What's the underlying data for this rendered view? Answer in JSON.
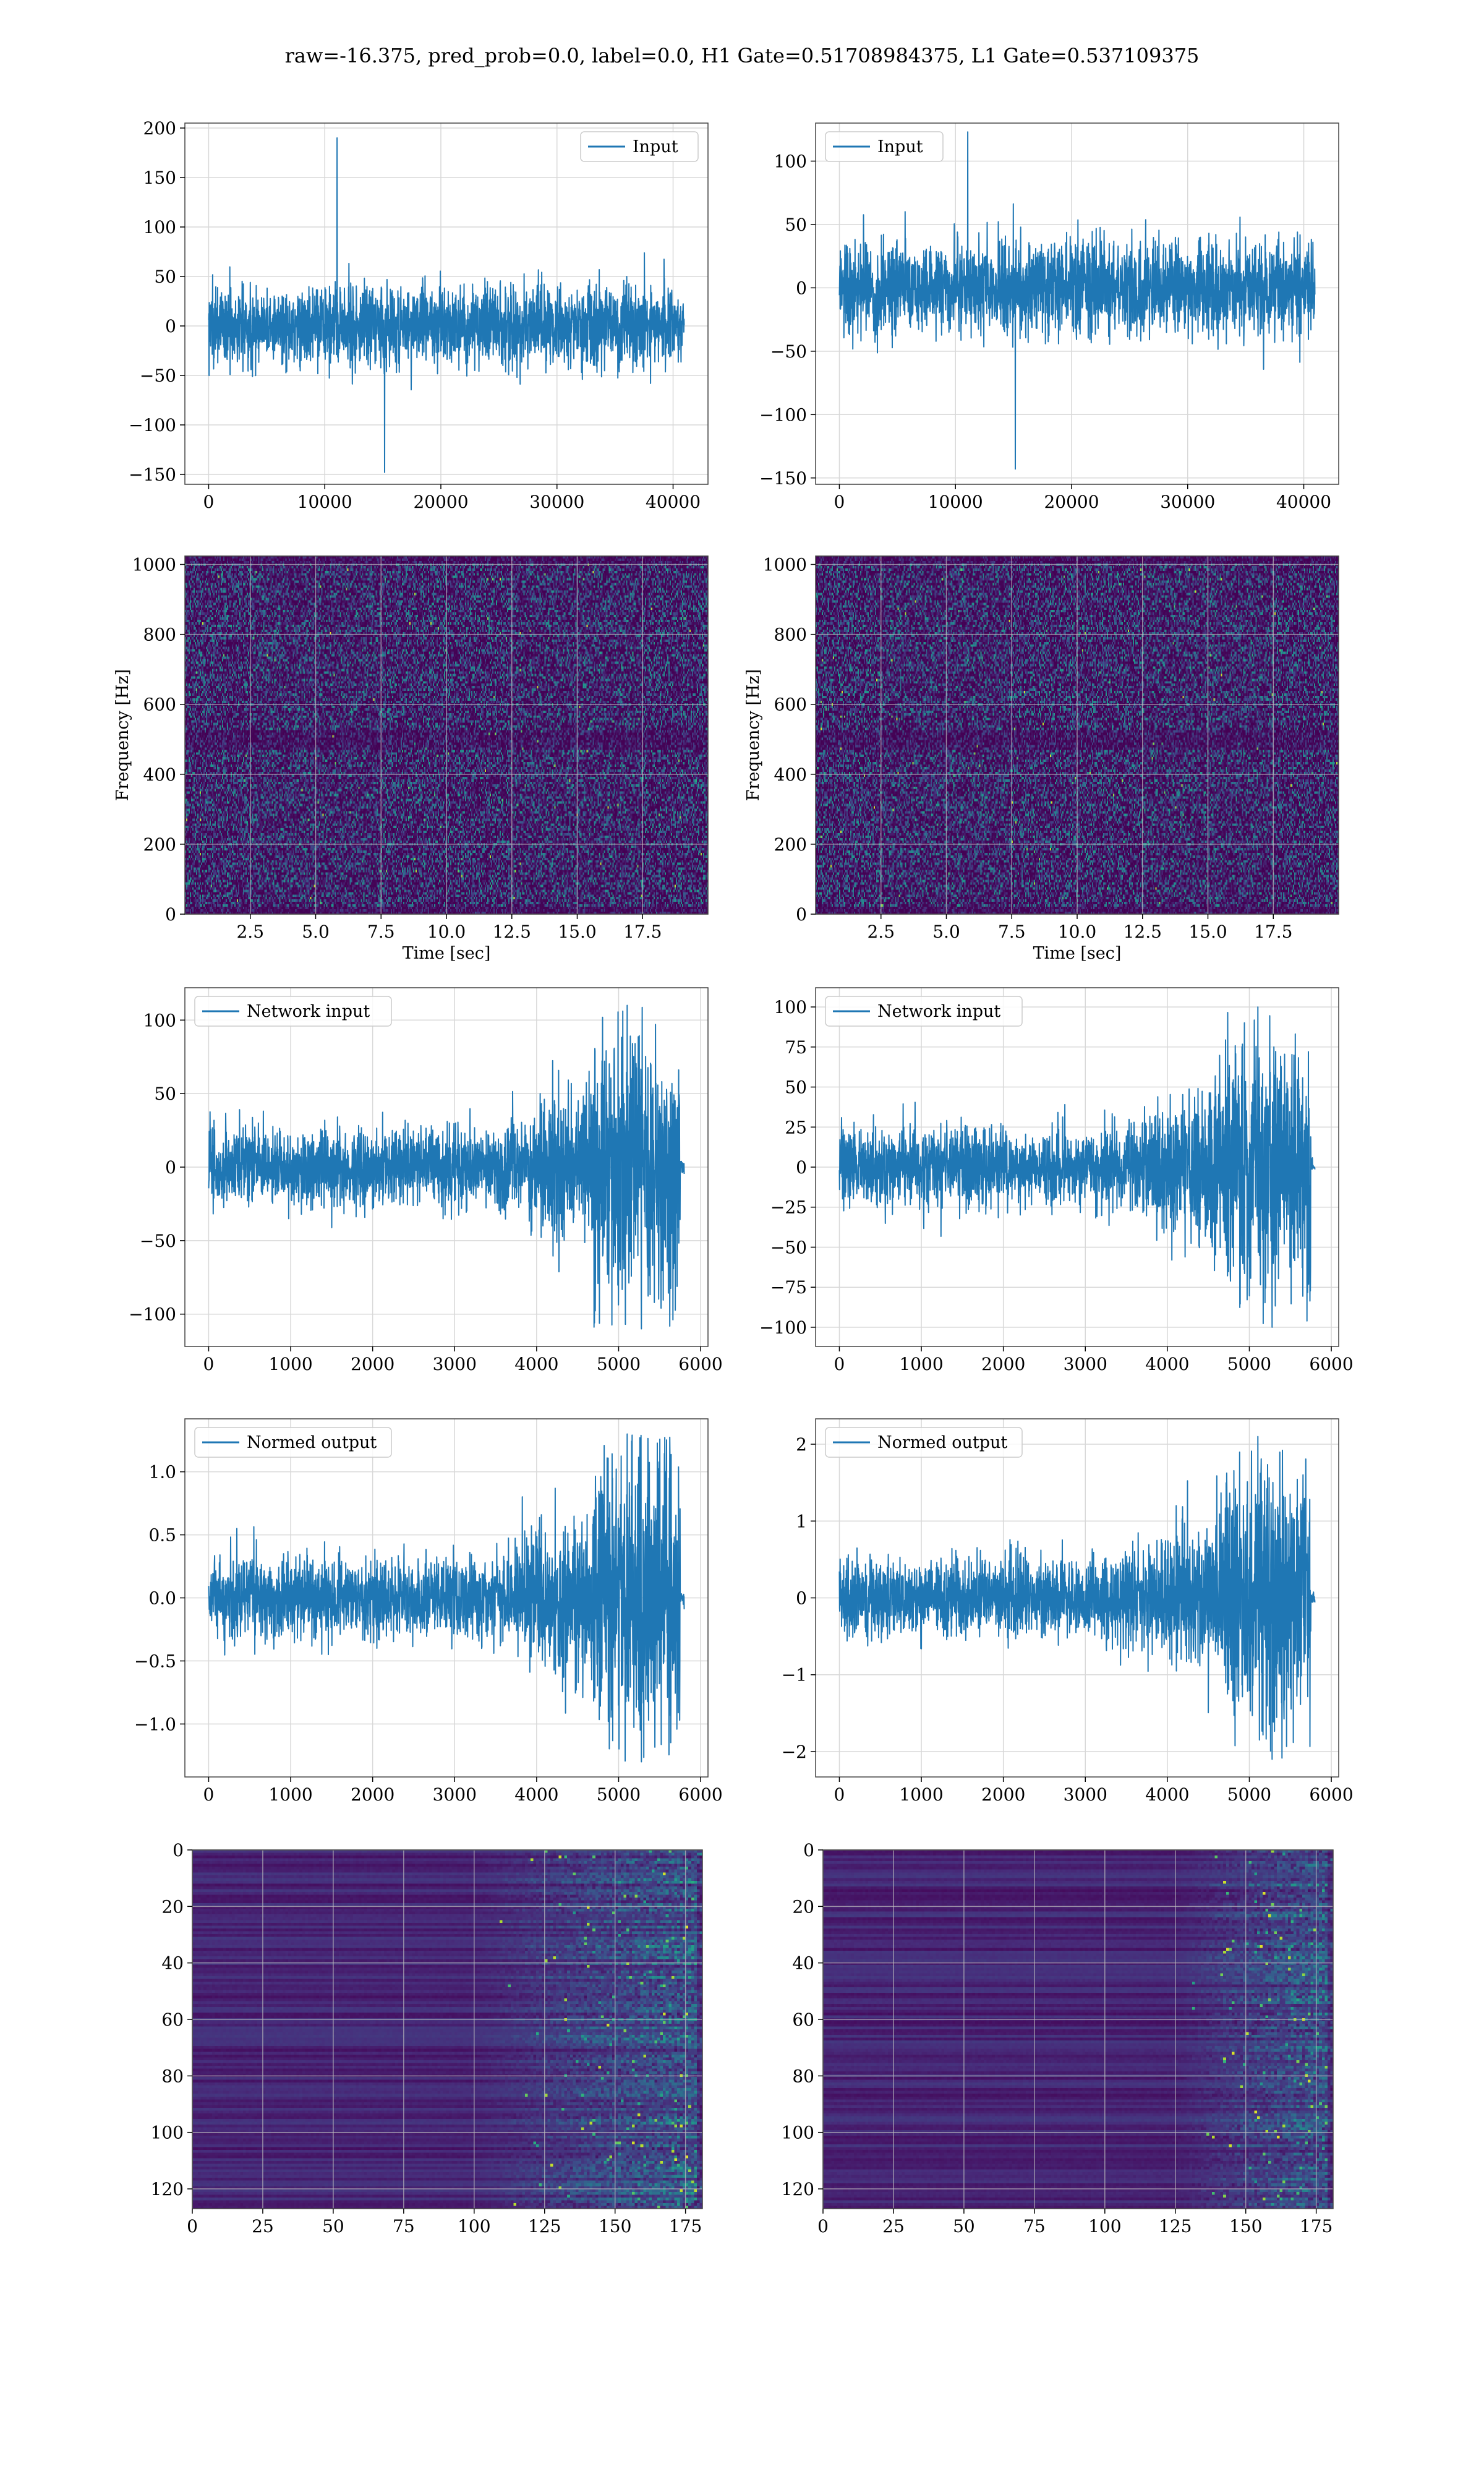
{
  "figure": {
    "title": "raw=-16.375, pred_prob=0.0, label=0.0, H1 Gate=0.51708984375, L1 Gate=0.537109375",
    "colors": {
      "line": "#1f77b4",
      "grid": "#d8d8d8",
      "frame": "#444444",
      "viridis": [
        "#440154",
        "#472d7b",
        "#3b528b",
        "#2c728e",
        "#21918c",
        "#28ae80",
        "#5ec962",
        "#addc30",
        "#fde725"
      ]
    }
  },
  "chart_data": [
    {
      "id": "h1-input",
      "type": "line",
      "series": [
        {
          "name": "Input",
          "x_range": [
            0,
            40960
          ],
          "typical_amplitude": 60,
          "peak": 190,
          "trough": -148
        }
      ],
      "legend": "top-right",
      "xlim": [
        -2048,
        43008
      ],
      "ylim": [
        -160,
        205
      ],
      "xticks": [
        0,
        10000,
        20000,
        30000,
        40000
      ],
      "xtick_labels": [
        "0",
        "10000",
        "20000",
        "30000",
        "40000"
      ],
      "yticks": [
        -150,
        -100,
        -50,
        0,
        50,
        100,
        150,
        200
      ],
      "ytick_labels": [
        "−150",
        "−100",
        "−50",
        "0",
        "50",
        "100",
        "150",
        "200"
      ],
      "grid": true
    },
    {
      "id": "l1-input",
      "type": "line",
      "series": [
        {
          "name": "Input",
          "x_range": [
            0,
            40960
          ],
          "typical_amplitude": 55,
          "peak": 123,
          "trough": -143
        }
      ],
      "legend": "top-left",
      "xlim": [
        -2048,
        43008
      ],
      "ylim": [
        -155,
        130
      ],
      "xticks": [
        0,
        10000,
        20000,
        30000,
        40000
      ],
      "xtick_labels": [
        "0",
        "10000",
        "20000",
        "30000",
        "40000"
      ],
      "yticks": [
        -150,
        -100,
        -50,
        0,
        50,
        100
      ],
      "ytick_labels": [
        "−150",
        "−100",
        "−50",
        "0",
        "50",
        "100"
      ],
      "grid": true
    },
    {
      "id": "h1-spectrogram",
      "type": "heatmap",
      "xlabel": "Time [sec]",
      "ylabel": "Frequency [Hz]",
      "xlim": [
        0,
        20
      ],
      "ylim": [
        0,
        1024
      ],
      "xticks": [
        2.5,
        5,
        7.5,
        10,
        12.5,
        15,
        17.5
      ],
      "xtick_labels": [
        "2.5",
        "5.0",
        "7.5",
        "10.0",
        "12.5",
        "15.0",
        "17.5"
      ],
      "yticks": [
        0,
        200,
        400,
        600,
        800,
        1000
      ],
      "ytick_labels": [
        "0",
        "200",
        "400",
        "600",
        "800",
        "1000"
      ],
      "grid": true,
      "colormap": "viridis"
    },
    {
      "id": "l1-spectrogram",
      "type": "heatmap",
      "xlabel": "Time [sec]",
      "ylabel": "Frequency [Hz]",
      "xlim": [
        0,
        20
      ],
      "ylim": [
        0,
        1024
      ],
      "xticks": [
        2.5,
        5,
        7.5,
        10,
        12.5,
        15,
        17.5
      ],
      "xtick_labels": [
        "2.5",
        "5.0",
        "7.5",
        "10.0",
        "12.5",
        "15.0",
        "17.5"
      ],
      "yticks": [
        0,
        200,
        400,
        600,
        800,
        1000
      ],
      "ytick_labels": [
        "0",
        "200",
        "400",
        "600",
        "800",
        "1000"
      ],
      "grid": true,
      "colormap": "viridis"
    },
    {
      "id": "h1-network-input",
      "type": "line",
      "series": [
        {
          "name": "Network input",
          "x_range": [
            0,
            5800
          ],
          "rises_after_x": 3400,
          "burst_from_x": 4700,
          "burst_to_x": 5750,
          "peak": 110,
          "trough": -110
        }
      ],
      "legend": "top-left",
      "xlim": [
        -290,
        6090
      ],
      "ylim": [
        -122,
        122
      ],
      "xticks": [
        0,
        1000,
        2000,
        3000,
        4000,
        5000,
        6000
      ],
      "xtick_labels": [
        "0",
        "1000",
        "2000",
        "3000",
        "4000",
        "5000",
        "6000"
      ],
      "yticks": [
        -100,
        -50,
        0,
        50,
        100
      ],
      "ytick_labels": [
        "−100",
        "−50",
        "0",
        "50",
        "100"
      ],
      "grid": true
    },
    {
      "id": "l1-network-input",
      "type": "line",
      "series": [
        {
          "name": "Network input",
          "x_range": [
            0,
            5800
          ],
          "rises_after_x": 3400,
          "burst_from_x": 4700,
          "burst_to_x": 5750,
          "peak": 100,
          "trough": -100
        }
      ],
      "legend": "top-left",
      "xlim": [
        -290,
        6090
      ],
      "ylim": [
        -112,
        112
      ],
      "xticks": [
        0,
        1000,
        2000,
        3000,
        4000,
        5000,
        6000
      ],
      "xtick_labels": [
        "0",
        "1000",
        "2000",
        "3000",
        "4000",
        "5000",
        "6000"
      ],
      "yticks": [
        -100,
        -75,
        -50,
        -25,
        0,
        25,
        50,
        75,
        100
      ],
      "ytick_labels": [
        "−100",
        "−75",
        "−50",
        "−25",
        "0",
        "25",
        "50",
        "75",
        "100"
      ],
      "grid": true
    },
    {
      "id": "h1-normed-output",
      "type": "line",
      "series": [
        {
          "name": "Normed output",
          "x_range": [
            0,
            5800
          ],
          "rises_after_x": 3400,
          "burst_from_x": 4700,
          "burst_to_x": 5750,
          "peak": 1.3,
          "trough": -1.3
        }
      ],
      "legend": "top-left",
      "xlim": [
        -290,
        6090
      ],
      "ylim": [
        -1.42,
        1.42
      ],
      "xticks": [
        0,
        1000,
        2000,
        3000,
        4000,
        5000,
        6000
      ],
      "xtick_labels": [
        "0",
        "1000",
        "2000",
        "3000",
        "4000",
        "5000",
        "6000"
      ],
      "yticks": [
        -1,
        -0.5,
        0,
        0.5,
        1
      ],
      "ytick_labels": [
        "−1.0",
        "−0.5",
        "0.0",
        "0.5",
        "1.0"
      ],
      "grid": true
    },
    {
      "id": "l1-normed-output",
      "type": "line",
      "series": [
        {
          "name": "Normed output",
          "x_range": [
            0,
            5800
          ],
          "rises_after_x": 3400,
          "burst_from_x": 4700,
          "burst_to_x": 5750,
          "peak": 2.1,
          "trough": -2.1
        }
      ],
      "legend": "top-left",
      "xlim": [
        -290,
        6090
      ],
      "ylim": [
        -2.33,
        2.33
      ],
      "xticks": [
        0,
        1000,
        2000,
        3000,
        4000,
        5000,
        6000
      ],
      "xtick_labels": [
        "0",
        "1000",
        "2000",
        "3000",
        "4000",
        "5000",
        "6000"
      ],
      "yticks": [
        -2,
        -1,
        0,
        1,
        2
      ],
      "ytick_labels": [
        "−2",
        "−1",
        "0",
        "1",
        "2"
      ],
      "grid": true
    },
    {
      "id": "h1-feature-map",
      "type": "heatmap",
      "xlim": [
        0,
        181
      ],
      "ylim": [
        127,
        0
      ],
      "xticks": [
        0,
        25,
        50,
        75,
        100,
        125,
        150,
        175
      ],
      "xtick_labels": [
        "0",
        "25",
        "50",
        "75",
        "100",
        "125",
        "150",
        "175"
      ],
      "yticks": [
        0,
        20,
        40,
        60,
        80,
        100,
        120
      ],
      "ytick_labels": [
        "0",
        "20",
        "40",
        "60",
        "80",
        "100",
        "120"
      ],
      "grid": true,
      "colormap": "viridis",
      "activity_starts_x": 100
    },
    {
      "id": "l1-feature-map",
      "type": "heatmap",
      "xlim": [
        0,
        181
      ],
      "ylim": [
        127,
        0
      ],
      "xticks": [
        0,
        25,
        50,
        75,
        100,
        125,
        150,
        175
      ],
      "xtick_labels": [
        "0",
        "25",
        "50",
        "75",
        "100",
        "125",
        "150",
        "175"
      ],
      "yticks": [
        0,
        20,
        40,
        60,
        80,
        100,
        120
      ],
      "ytick_labels": [
        "0",
        "20",
        "40",
        "60",
        "80",
        "100",
        "120"
      ],
      "grid": true,
      "colormap": "viridis",
      "activity_starts_x": 125
    }
  ]
}
